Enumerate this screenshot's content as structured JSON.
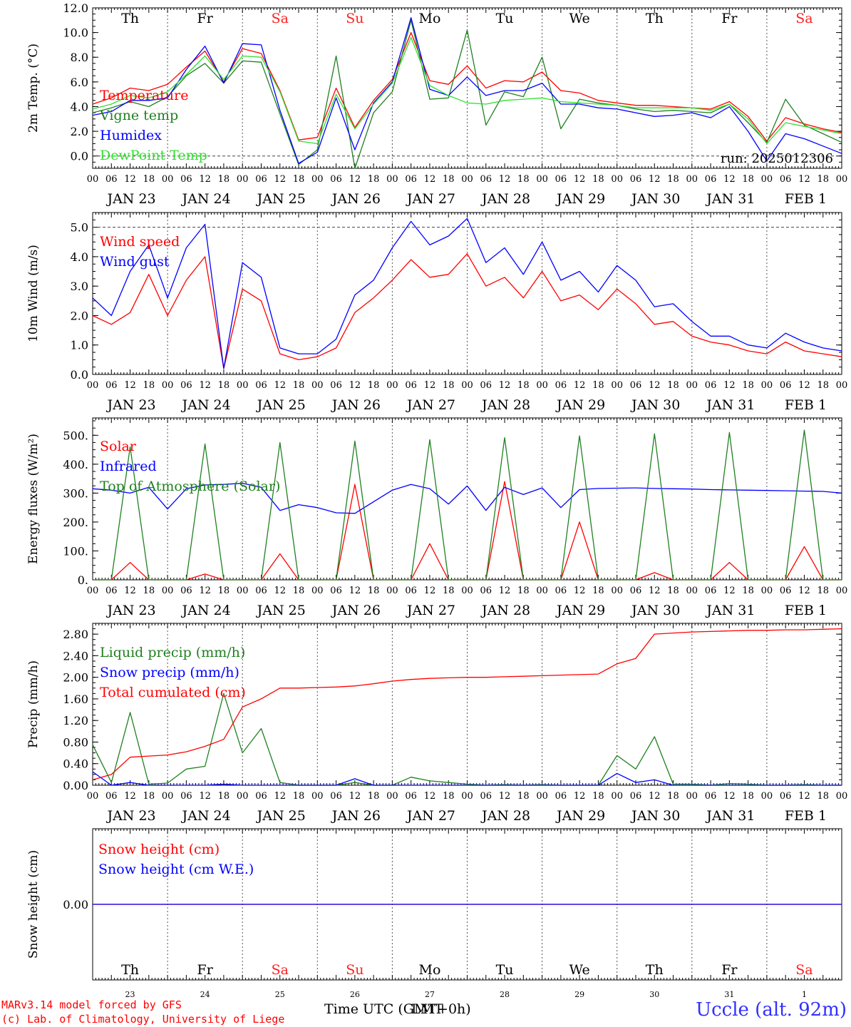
{
  "days": [
    {
      "abbr": "Th",
      "weekend": false,
      "date_label": "JAN 23",
      "day_num": "23"
    },
    {
      "abbr": "Fr",
      "weekend": false,
      "date_label": "JAN 24",
      "day_num": "24"
    },
    {
      "abbr": "Sa",
      "weekend": true,
      "date_label": "JAN 25",
      "day_num": "25"
    },
    {
      "abbr": "Su",
      "weekend": true,
      "date_label": "JAN 26",
      "day_num": "26"
    },
    {
      "abbr": "Mo",
      "weekend": false,
      "date_label": "JAN 27",
      "day_num": "27"
    },
    {
      "abbr": "Tu",
      "weekend": false,
      "date_label": "JAN 28",
      "day_num": "28"
    },
    {
      "abbr": "We",
      "weekend": false,
      "date_label": "JAN 29",
      "day_num": "29"
    },
    {
      "abbr": "Th",
      "weekend": false,
      "date_label": "JAN 30",
      "day_num": "30"
    },
    {
      "abbr": "Fr",
      "weekend": false,
      "date_label": "JAN 31",
      "day_num": "31"
    },
    {
      "abbr": "Sa",
      "weekend": true,
      "date_label": "FEB  1",
      "day_num": "1"
    }
  ],
  "hour_ticks": [
    "00",
    "06",
    "12",
    "18"
  ],
  "hour_tick_end": "00",
  "colors": {
    "weekend": "#ff2020",
    "red": "#ff0000",
    "green": "#208020",
    "blue": "#0000ff",
    "lime": "#30e030",
    "axis": "#000000"
  },
  "footer": {
    "credit_line1": "MARv3.14 model forced by GFS",
    "credit_line2": "(c) Lab. of Climatology, University of Liege",
    "axis_title_a": "Time UTC (GMT+0h)",
    "axis_title_b": "LMT",
    "location": "Uccle (alt. 92m)"
  },
  "chart_data": [
    {
      "type": "line",
      "ylabel": "2m Temp. (°C)",
      "ylim": [
        -1,
        12
      ],
      "yticks": [
        "12.0",
        "10.0",
        "8.0",
        "6.0",
        "4.0",
        "2.0",
        "0.0"
      ],
      "ytick_values": [
        12,
        10,
        8,
        6,
        4,
        2,
        0
      ],
      "ref_line": 0,
      "annotation": "run: 2025012306",
      "x": [
        0,
        6,
        12,
        18,
        24,
        30,
        36,
        42,
        48,
        54,
        60,
        66,
        72,
        78,
        84,
        90,
        96,
        102,
        108,
        114,
        120,
        126,
        132,
        138,
        144,
        150,
        156,
        162,
        168,
        174,
        180,
        186,
        192,
        198,
        204,
        210,
        216,
        222,
        228,
        234,
        240
      ],
      "series": [
        {
          "name": "Temperature",
          "color": "red",
          "values": [
            4.2,
            4.7,
            5.5,
            5.3,
            5.8,
            7.2,
            8.5,
            6.0,
            8.7,
            8.3,
            5.3,
            1.3,
            1.5,
            5.5,
            2.3,
            4.5,
            6.2,
            10.0,
            6.1,
            5.8,
            7.3,
            5.5,
            6.1,
            6.0,
            6.8,
            5.3,
            5.1,
            4.5,
            4.3,
            4.1,
            4.1,
            4.0,
            3.9,
            3.8,
            4.4,
            3.2,
            1.2,
            3.1,
            2.6,
            2.2,
            1.9
          ]
        },
        {
          "name": "Vigne temp",
          "color": "green",
          "values": [
            3.5,
            3.9,
            4.4,
            4.0,
            4.8,
            6.5,
            7.5,
            5.9,
            7.7,
            7.6,
            3.4,
            -0.7,
            0.5,
            8.1,
            -1.0,
            3.5,
            5.2,
            11.0,
            4.6,
            4.7,
            10.2,
            2.5,
            5.2,
            4.8,
            8.0,
            2.2,
            4.6,
            4.3,
            4.1,
            3.8,
            3.6,
            3.7,
            3.6,
            3.5,
            4.2,
            2.7,
            1.1,
            4.6,
            2.5,
            1.8,
            1.1
          ]
        },
        {
          "name": "Humidex",
          "color": "blue",
          "values": [
            3.3,
            3.6,
            4.5,
            4.5,
            4.7,
            7.0,
            8.9,
            5.9,
            9.1,
            9.0,
            3.7,
            -0.6,
            0.3,
            4.7,
            0.5,
            4.3,
            6.0,
            11.2,
            5.4,
            4.9,
            6.4,
            4.9,
            5.3,
            5.3,
            5.9,
            4.2,
            4.2,
            3.9,
            3.8,
            3.5,
            3.2,
            3.3,
            3.5,
            3.1,
            4.0,
            2.0,
            -0.4,
            1.8,
            1.4,
            0.8,
            0.2
          ]
        },
        {
          "name": "DewPoint Temp",
          "color": "lime",
          "values": [
            3.8,
            4.2,
            4.9,
            4.7,
            5.2,
            6.6,
            8.1,
            6.2,
            8.1,
            8.0,
            5.2,
            1.2,
            1.0,
            5.0,
            2.2,
            4.2,
            5.9,
            9.6,
            5.7,
            4.9,
            4.3,
            4.2,
            4.5,
            4.6,
            4.7,
            4.4,
            4.3,
            4.2,
            4.1,
            3.9,
            3.9,
            3.9,
            3.9,
            3.7,
            4.2,
            3.0,
            1.0,
            2.7,
            2.4,
            2.1,
            1.8
          ]
        }
      ]
    },
    {
      "type": "line",
      "ylabel": "10m Wind (m/s)",
      "ylim": [
        0,
        5.5
      ],
      "yticks": [
        "5.0",
        "4.0",
        "3.0",
        "2.0",
        "1.0",
        "0.0"
      ],
      "ytick_values": [
        5,
        4,
        3,
        2,
        1,
        0
      ],
      "ref_line": 5,
      "x": [
        0,
        6,
        12,
        18,
        24,
        30,
        36,
        42,
        48,
        54,
        60,
        66,
        72,
        78,
        84,
        90,
        96,
        102,
        108,
        114,
        120,
        126,
        132,
        138,
        144,
        150,
        156,
        162,
        168,
        174,
        180,
        186,
        192,
        198,
        204,
        210,
        216,
        222,
        228,
        234,
        240
      ],
      "series": [
        {
          "name": "Wind speed",
          "color": "red",
          "values": [
            2.0,
            1.7,
            2.1,
            3.4,
            2.0,
            3.2,
            4.0,
            0.2,
            2.9,
            2.5,
            0.7,
            0.5,
            0.6,
            0.9,
            2.1,
            2.6,
            3.2,
            3.9,
            3.3,
            3.4,
            4.1,
            3.0,
            3.3,
            2.6,
            3.5,
            2.5,
            2.7,
            2.2,
            2.9,
            2.4,
            1.7,
            1.8,
            1.3,
            1.1,
            1.0,
            0.8,
            0.7,
            1.1,
            0.8,
            0.7,
            0.6
          ]
        },
        {
          "name": "Wind gust",
          "color": "blue",
          "values": [
            2.6,
            2.0,
            3.5,
            4.4,
            2.6,
            4.3,
            5.1,
            0.2,
            3.8,
            3.3,
            0.9,
            0.7,
            0.7,
            1.2,
            2.7,
            3.2,
            4.3,
            5.2,
            4.4,
            4.7,
            5.3,
            3.8,
            4.3,
            3.4,
            4.5,
            3.2,
            3.5,
            2.8,
            3.7,
            3.2,
            2.3,
            2.4,
            1.8,
            1.3,
            1.3,
            1.0,
            0.9,
            1.4,
            1.1,
            0.9,
            0.8
          ]
        }
      ]
    },
    {
      "type": "line",
      "ylabel": "Energy fluxes (W/m²)",
      "ylim": [
        0,
        560
      ],
      "yticks": [
        "500.",
        "400.",
        "300.",
        "200.",
        "100.",
        "0."
      ],
      "ytick_values": [
        500,
        400,
        300,
        200,
        100,
        0
      ],
      "x": [
        0,
        6,
        12,
        18,
        24,
        30,
        36,
        42,
        48,
        54,
        60,
        66,
        72,
        78,
        84,
        90,
        96,
        102,
        108,
        114,
        120,
        126,
        132,
        138,
        144,
        150,
        156,
        162,
        168,
        174,
        180,
        186,
        192,
        198,
        204,
        210,
        216,
        222,
        228,
        234,
        240
      ],
      "series": [
        {
          "name": "Solar",
          "color": "red",
          "values": [
            0,
            0,
            60,
            0,
            0,
            0,
            20,
            0,
            0,
            0,
            90,
            0,
            0,
            0,
            330,
            0,
            0,
            0,
            125,
            0,
            0,
            0,
            340,
            0,
            0,
            0,
            200,
            0,
            0,
            0,
            25,
            0,
            0,
            0,
            60,
            0,
            0,
            0,
            115,
            0,
            0
          ]
        },
        {
          "name": "Infrared",
          "color": "blue",
          "values": [
            315,
            310,
            300,
            320,
            245,
            315,
            328,
            330,
            334,
            320,
            240,
            260,
            250,
            232,
            230,
            270,
            310,
            330,
            315,
            262,
            325,
            240,
            320,
            295,
            318,
            250,
            312,
            316,
            317,
            318,
            316,
            315,
            314,
            312,
            311,
            310,
            309,
            308,
            307,
            306,
            300
          ]
        },
        {
          "name": "Top of Atmosphere (Solar)",
          "color": "green",
          "values": [
            0,
            0,
            460,
            0,
            0,
            0,
            470,
            0,
            0,
            0,
            475,
            0,
            0,
            0,
            480,
            0,
            0,
            0,
            485,
            0,
            0,
            0,
            492,
            0,
            0,
            0,
            498,
            0,
            0,
            0,
            505,
            0,
            0,
            0,
            510,
            0,
            0,
            0,
            518,
            0,
            0
          ]
        }
      ]
    },
    {
      "type": "line",
      "ylabel": "Precip (mm/h)",
      "ylim": [
        0,
        3.0
      ],
      "yticks": [
        "2.80",
        "2.40",
        "2.00",
        "1.60",
        "1.20",
        "0.80",
        "0.40",
        "0.00"
      ],
      "ytick_values": [
        2.8,
        2.4,
        2.0,
        1.6,
        1.2,
        0.8,
        0.4,
        0
      ],
      "x": [
        0,
        6,
        12,
        18,
        24,
        30,
        36,
        42,
        48,
        54,
        60,
        66,
        72,
        78,
        84,
        90,
        96,
        102,
        108,
        114,
        120,
        126,
        132,
        138,
        144,
        150,
        156,
        162,
        168,
        174,
        180,
        186,
        192,
        198,
        204,
        210,
        216,
        222,
        228,
        234,
        240
      ],
      "series": [
        {
          "name": "Liquid precip (mm/h)",
          "color": "green",
          "values": [
            0.75,
            0.05,
            1.35,
            0.02,
            0.04,
            0.3,
            0.35,
            1.7,
            0.6,
            1.05,
            0.05,
            0.0,
            0.0,
            0.0,
            0.05,
            0.0,
            0.0,
            0.15,
            0.08,
            0.05,
            0.02,
            0.0,
            0.01,
            0.0,
            0.01,
            0.0,
            0.0,
            0.0,
            0.55,
            0.3,
            0.9,
            0.02,
            0.02,
            0.0,
            0.03,
            0.02,
            0.0,
            0.0,
            0.01,
            0.0,
            0.0
          ]
        },
        {
          "name": "Snow precip (mm/h)",
          "color": "blue",
          "values": [
            0.25,
            0.0,
            0.05,
            0.0,
            0.0,
            0.0,
            0.0,
            0.02,
            0.0,
            0.0,
            0.0,
            0.0,
            0.0,
            0.0,
            0.12,
            0.0,
            0.0,
            0.0,
            0.0,
            0.0,
            0.0,
            0.0,
            0.0,
            0.0,
            0.0,
            0.0,
            0.0,
            0.0,
            0.22,
            0.05,
            0.1,
            0.0,
            0.0,
            0.0,
            0.0,
            0.0,
            0.0,
            0.0,
            0.0,
            0.0,
            0.0
          ]
        },
        {
          "name": "Total cumulated (cm)",
          "color": "red",
          "values": [
            0.1,
            0.2,
            0.52,
            0.54,
            0.56,
            0.62,
            0.72,
            0.85,
            1.45,
            1.6,
            1.8,
            1.8,
            1.81,
            1.82,
            1.84,
            1.88,
            1.93,
            1.96,
            1.98,
            1.99,
            2.0,
            2.0,
            2.01,
            2.02,
            2.03,
            2.04,
            2.05,
            2.06,
            2.25,
            2.35,
            2.8,
            2.82,
            2.84,
            2.85,
            2.86,
            2.87,
            2.87,
            2.88,
            2.88,
            2.89,
            2.9
          ]
        }
      ]
    },
    {
      "type": "line",
      "ylabel": "Snow height (cm)",
      "ylim": [
        -1,
        1
      ],
      "yticks": [
        "0.00"
      ],
      "ytick_values": [
        0
      ],
      "x": [
        0,
        240
      ],
      "series": [
        {
          "name": "Snow height (cm)",
          "color": "red",
          "values": [
            0,
            0
          ]
        },
        {
          "name": "Snow height (cm W.E.)",
          "color": "blue",
          "values": [
            0,
            0
          ]
        }
      ]
    }
  ]
}
